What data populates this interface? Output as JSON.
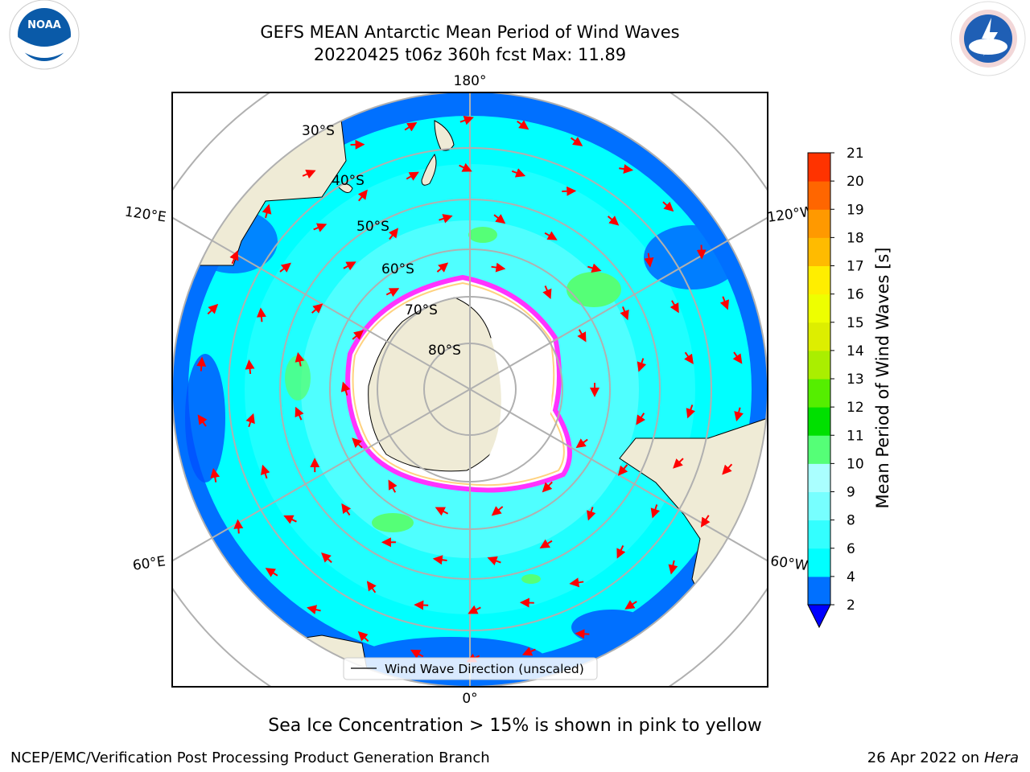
{
  "title": {
    "line1": "GEFS MEAN Antarctic Mean Period of Wind Waves",
    "line2": "20220425 t06z 360h fcst   Max: 11.89"
  },
  "logos": {
    "left": {
      "name": "noaa-logo",
      "text": "NOAA"
    },
    "right": {
      "name": "nws-logo",
      "text": "NATIONAL WEATHER SERVICE"
    }
  },
  "map": {
    "projection": "south-polar-stereographic",
    "colors": {
      "land": "#efebd6",
      "ice": "#ffffff",
      "ice_edge_outer": "#ff33ff",
      "ice_edge_inner": "#ffd27f",
      "arrow": "#ff0000",
      "grid": "#b0b0b0"
    },
    "longitude_labels": [
      "180°",
      "120°E",
      "120°W",
      "60°E",
      "60°W",
      "0°"
    ],
    "latitude_labels": [
      "30°S",
      "40°S",
      "50°S",
      "60°S",
      "70°S",
      "80°S"
    ],
    "legend": {
      "label": "Wind Wave Direction (unscaled)"
    }
  },
  "colorbar": {
    "label": "Mean Period of Wind Waves [s]",
    "ticks": [
      "2",
      "4",
      "6",
      "8",
      "9",
      "10",
      "11",
      "12",
      "13",
      "14",
      "15",
      "16",
      "17",
      "18",
      "19",
      "20",
      "21"
    ],
    "colors": [
      "#0070ff",
      "#00ffff",
      "#33ffff",
      "#77ffff",
      "#aaffff",
      "#55ff77",
      "#00e000",
      "#55ee00",
      "#aaee00",
      "#ddee00",
      "#eeff00",
      "#ffee00",
      "#ffbb00",
      "#ff9900",
      "#ff6600",
      "#ff3300",
      "#ff0000"
    ],
    "extend_color": "#0000ff"
  },
  "caption": "Sea Ice Concentration > 15% is shown in pink to yellow",
  "footer": {
    "left": "NCEP/EMC/Verification Post Processing Product Generation Branch",
    "right_prefix": "26 Apr 2022 on ",
    "right_machine": "Hera"
  }
}
